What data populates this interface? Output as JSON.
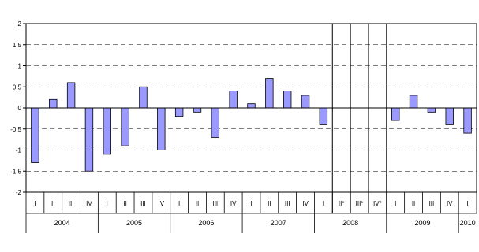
{
  "chart_data": {
    "type": "bar",
    "title": "",
    "xlabel": "",
    "ylabel": "",
    "ylim": [
      -2,
      2
    ],
    "yticks": [
      "2",
      "1.5",
      "1",
      "0.5",
      "0",
      "-0.5",
      "-1",
      "-1.5",
      "-2"
    ],
    "grid": "horizontal dashed",
    "legend": "none",
    "bar_color": "#9999ff",
    "categories": [
      "I",
      "II",
      "III",
      "IV",
      "I",
      "II",
      "III",
      "IV",
      "I",
      "II",
      "III",
      "IV",
      "I",
      "II",
      "III",
      "IV",
      "I",
      "II*",
      "III*",
      "IV*",
      "I",
      "II",
      "III",
      "IV",
      "I"
    ],
    "values": [
      -1.3,
      0.2,
      0.6,
      -1.5,
      -1.1,
      -0.9,
      0.5,
      -1.0,
      -0.2,
      -0.1,
      -0.7,
      0.4,
      0.1,
      0.7,
      0.4,
      0.3,
      -0.4,
      null,
      null,
      null,
      -0.3,
      0.3,
      -0.1,
      -0.4,
      -0.6
    ],
    "years": [
      {
        "label": "2004",
        "start": 0,
        "count": 4
      },
      {
        "label": "2005",
        "start": 4,
        "count": 4
      },
      {
        "label": "2006",
        "start": 8,
        "count": 4
      },
      {
        "label": "2007",
        "start": 12,
        "count": 4
      },
      {
        "label": "2008",
        "start": 16,
        "count": 4
      },
      {
        "label": "2009",
        "start": 20,
        "count": 4
      },
      {
        "label": "2010",
        "start": 24,
        "count": 1
      }
    ],
    "highlighted_categories": [
      17,
      18,
      19
    ]
  }
}
